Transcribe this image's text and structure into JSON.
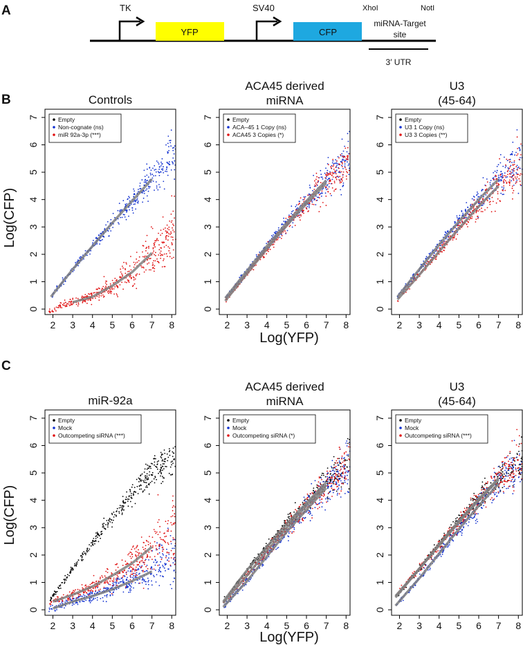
{
  "panel_labels": {
    "a": "A",
    "b": "B",
    "c": "C"
  },
  "construct": {
    "tk": "TK",
    "yfp": "YFP",
    "sv40": "SV40",
    "cfp": "CFP",
    "xhoi": "XhoI",
    "noti": "NotI",
    "target_line1": "miRNA-Target",
    "target_line2": "site",
    "utr": "3′ UTR",
    "colors": {
      "yfp": "#ffff00",
      "cfp": "#1ea8e0"
    }
  },
  "axis_labels": {
    "x": "Log(YFP)",
    "y": "Log(CFP)"
  },
  "series_colors": {
    "empty": "#000000",
    "blue": "#1030d0",
    "red": "#e01010",
    "fit": "#808080"
  },
  "chart_data": [
    {
      "type": "scatter",
      "title": [
        "Controls"
      ],
      "xlim": [
        1.6,
        8.2
      ],
      "ylim": [
        -0.2,
        7.3
      ],
      "xticks": [
        2,
        3,
        4,
        5,
        6,
        7,
        8
      ],
      "yticks": [
        0,
        1,
        2,
        3,
        4,
        5,
        6,
        7
      ],
      "legend": [
        "Empty",
        "Non-cognate (ns)",
        "miR 92a-3p (***)"
      ],
      "series": [
        {
          "name": "Non-cognate (ns)",
          "color": "blue",
          "x_range": [
            1.9,
            8.2
          ],
          "fit_x": [
            1.9,
            7.0
          ],
          "curve": [
            [
              1.9,
              0.45
            ],
            [
              3,
              1.45
            ],
            [
              4,
              2.3
            ],
            [
              5,
              3.15
            ],
            [
              6,
              3.95
            ],
            [
              7,
              4.75
            ],
            [
              8.2,
              5.7
            ]
          ],
          "noise": [
            0.05,
            0.45
          ],
          "count": 430
        },
        {
          "name": "miR 92a-3p (***)",
          "color": "red",
          "x_range": [
            1.8,
            8.2
          ],
          "fit_x": [
            3.0,
            7.0
          ],
          "curve": [
            [
              1.8,
              -0.1
            ],
            [
              2.5,
              0.15
            ],
            [
              3,
              0.25
            ],
            [
              4,
              0.45
            ],
            [
              5,
              0.85
            ],
            [
              6,
              1.35
            ],
            [
              7,
              2.05
            ],
            [
              8.2,
              2.9
            ]
          ],
          "noise": [
            0.07,
            0.6
          ],
          "count": 430
        }
      ]
    },
    {
      "type": "scatter",
      "title": [
        "ACA45 derived",
        "miRNA"
      ],
      "xlim": [
        1.6,
        8.2
      ],
      "ylim": [
        -0.2,
        7.3
      ],
      "xticks": [
        2,
        3,
        4,
        5,
        6,
        7,
        8
      ],
      "yticks": [
        0,
        1,
        2,
        3,
        4,
        5,
        6,
        7
      ],
      "legend": [
        "Empty",
        "ACA–45 1 Copy (ns)",
        "ACA45  3 Copies (*)"
      ],
      "series": [
        {
          "name": "ACA–45 1 Copy (ns)",
          "color": "blue",
          "x_range": [
            1.9,
            8.2
          ],
          "fit_x": [
            1.9,
            7.0
          ],
          "curve": [
            [
              1.9,
              0.4
            ],
            [
              3,
              1.4
            ],
            [
              4,
              2.3
            ],
            [
              5,
              3.15
            ],
            [
              6,
              3.95
            ],
            [
              7,
              4.7
            ],
            [
              8.2,
              5.5
            ]
          ],
          "noise": [
            0.05,
            0.45
          ],
          "count": 380
        },
        {
          "name": "ACA45  3 Copies (*)",
          "color": "red",
          "x_range": [
            1.9,
            8.2
          ],
          "fit_x": [
            1.9,
            7.0
          ],
          "curve": [
            [
              1.9,
              0.3
            ],
            [
              3,
              1.3
            ],
            [
              4,
              2.2
            ],
            [
              5,
              3.05
            ],
            [
              6,
              3.85
            ],
            [
              7,
              4.6
            ],
            [
              8.2,
              5.4
            ]
          ],
          "noise": [
            0.05,
            0.45
          ],
          "count": 380
        }
      ]
    },
    {
      "type": "scatter",
      "title": [
        "U3",
        "(45-64)"
      ],
      "xlim": [
        1.6,
        8.2
      ],
      "ylim": [
        -0.2,
        7.3
      ],
      "xticks": [
        2,
        3,
        4,
        5,
        6,
        7,
        8
      ],
      "yticks": [
        0,
        1,
        2,
        3,
        4,
        5,
        6,
        7
      ],
      "legend": [
        "Empty",
        "U3 1 Copy (ns)",
        "U3 3 Copies (**)"
      ],
      "series": [
        {
          "name": "U3 1 Copy (ns)",
          "color": "blue",
          "x_range": [
            1.9,
            8.2
          ],
          "fit_x": [
            1.9,
            7.0
          ],
          "curve": [
            [
              1.9,
              0.45
            ],
            [
              3,
              1.45
            ],
            [
              4,
              2.35
            ],
            [
              5,
              3.2
            ],
            [
              6,
              4.0
            ],
            [
              7,
              4.75
            ],
            [
              8.2,
              5.5
            ]
          ],
          "noise": [
            0.05,
            0.45
          ],
          "count": 380
        },
        {
          "name": "U3 3 Copies (**)",
          "color": "red",
          "x_range": [
            1.9,
            8.2
          ],
          "fit_x": [
            1.9,
            7.0
          ],
          "curve": [
            [
              1.9,
              0.35
            ],
            [
              3,
              1.25
            ],
            [
              4,
              2.1
            ],
            [
              5,
              2.95
            ],
            [
              6,
              3.75
            ],
            [
              7,
              4.5
            ],
            [
              8.2,
              5.3
            ]
          ],
          "noise": [
            0.05,
            0.45
          ],
          "count": 380
        }
      ]
    },
    {
      "type": "scatter",
      "title": [
        "miR-92a"
      ],
      "xlim": [
        1.6,
        8.2
      ],
      "ylim": [
        -0.2,
        7.3
      ],
      "xticks": [
        2,
        3,
        4,
        5,
        6,
        7,
        8
      ],
      "yticks": [
        0,
        1,
        2,
        3,
        4,
        5,
        6,
        7
      ],
      "legend": [
        "Empty",
        "Mock",
        "Outcompeting siRNA (***)"
      ],
      "series": [
        {
          "name": "Empty",
          "color": "empty",
          "x_range": [
            1.8,
            8.2
          ],
          "fit_x": null,
          "curve": [
            [
              1.8,
              0.3
            ],
            [
              3,
              1.5
            ],
            [
              4,
              2.45
            ],
            [
              5,
              3.35
            ],
            [
              6,
              4.2
            ],
            [
              7,
              5.0
            ],
            [
              8.2,
              5.7
            ]
          ],
          "noise": [
            0.05,
            0.4
          ],
          "count": 380
        },
        {
          "name": "Mock",
          "color": "blue",
          "x_range": [
            1.8,
            8.2
          ],
          "fit_x": [
            2.0,
            7.0
          ],
          "curve": [
            [
              1.8,
              0.0
            ],
            [
              3,
              0.3
            ],
            [
              4,
              0.5
            ],
            [
              5,
              0.75
            ],
            [
              6,
              1.05
            ],
            [
              7,
              1.4
            ],
            [
              8.2,
              1.9
            ]
          ],
          "noise": [
            0.06,
            0.5
          ],
          "count": 420
        },
        {
          "name": "Outcompeting siRNA (***)",
          "color": "red",
          "x_range": [
            1.8,
            8.2
          ],
          "fit_x": [
            2.0,
            7.0
          ],
          "curve": [
            [
              1.8,
              0.25
            ],
            [
              3,
              0.55
            ],
            [
              4,
              0.85
            ],
            [
              5,
              1.25
            ],
            [
              6,
              1.7
            ],
            [
              7,
              2.3
            ],
            [
              8.2,
              2.9
            ]
          ],
          "noise": [
            0.06,
            0.6
          ],
          "count": 420
        }
      ]
    },
    {
      "type": "scatter",
      "title": [
        "ACA45 derived",
        "miRNA"
      ],
      "xlim": [
        1.6,
        8.2
      ],
      "ylim": [
        -0.2,
        7.3
      ],
      "xticks": [
        2,
        3,
        4,
        5,
        6,
        7,
        8
      ],
      "yticks": [
        0,
        1,
        2,
        3,
        4,
        5,
        6,
        7
      ],
      "legend": [
        "Empty",
        "Mock",
        "Outcompeting siRNA (*)"
      ],
      "series": [
        {
          "name": "Empty",
          "color": "empty",
          "x_range": [
            1.8,
            8.2
          ],
          "fit_x": [
            1.8,
            7.0
          ],
          "curve": [
            [
              1.8,
              0.3
            ],
            [
              3,
              1.45
            ],
            [
              4,
              2.3
            ],
            [
              5,
              3.15
            ],
            [
              6,
              3.9
            ],
            [
              7,
              4.65
            ],
            [
              8.2,
              5.4
            ]
          ],
          "noise": [
            0.04,
            0.4
          ],
          "count": 360
        },
        {
          "name": "Mock",
          "color": "blue",
          "x_range": [
            1.8,
            8.2
          ],
          "fit_x": [
            1.8,
            7.0
          ],
          "curve": [
            [
              1.8,
              0.1
            ],
            [
              3,
              1.05
            ],
            [
              4,
              1.95
            ],
            [
              5,
              2.85
            ],
            [
              6,
              3.65
            ],
            [
              7,
              4.45
            ],
            [
              8.2,
              5.3
            ]
          ],
          "noise": [
            0.05,
            0.5
          ],
          "count": 380
        },
        {
          "name": "Outcompeting siRNA (*)",
          "color": "red",
          "x_range": [
            1.8,
            8.2
          ],
          "fit_x": [
            1.8,
            7.0
          ],
          "curve": [
            [
              1.8,
              0.25
            ],
            [
              3,
              1.25
            ],
            [
              4,
              2.15
            ],
            [
              5,
              3.0
            ],
            [
              6,
              3.8
            ],
            [
              7,
              4.55
            ],
            [
              8.2,
              5.4
            ]
          ],
          "noise": [
            0.05,
            0.5
          ],
          "count": 380
        }
      ]
    },
    {
      "type": "scatter",
      "title": [
        "U3",
        "(45-64)"
      ],
      "xlim": [
        1.6,
        8.2
      ],
      "ylim": [
        -0.2,
        7.3
      ],
      "xticks": [
        2,
        3,
        4,
        5,
        6,
        7,
        8
      ],
      "yticks": [
        0,
        1,
        2,
        3,
        4,
        5,
        6,
        7
      ],
      "legend": [
        "Empty",
        "Mock",
        "Outcompeting siRNA (***)"
      ],
      "series": [
        {
          "name": "Empty",
          "color": "empty",
          "x_range": [
            1.8,
            8.2
          ],
          "fit_x": [
            1.8,
            7.0
          ],
          "curve": [
            [
              1.8,
              0.45
            ],
            [
              3,
              1.5
            ],
            [
              4,
              2.4
            ],
            [
              5,
              3.25
            ],
            [
              6,
              4.05
            ],
            [
              7,
              4.8
            ],
            [
              8.2,
              5.5
            ]
          ],
          "noise": [
            0.04,
            0.4
          ],
          "count": 360
        },
        {
          "name": "Mock",
          "color": "blue",
          "x_range": [
            1.8,
            8.2
          ],
          "fit_x": [
            1.8,
            7.0
          ],
          "curve": [
            [
              1.8,
              0.15
            ],
            [
              3,
              1.15
            ],
            [
              4,
              2.05
            ],
            [
              5,
              2.95
            ],
            [
              6,
              3.8
            ],
            [
              7,
              4.6
            ],
            [
              8.2,
              5.3
            ]
          ],
          "noise": [
            0.05,
            0.5
          ],
          "count": 380
        },
        {
          "name": "Outcompeting siRNA (***)",
          "color": "red",
          "x_range": [
            1.8,
            8.2
          ],
          "fit_x": [
            1.8,
            7.0
          ],
          "curve": [
            [
              1.8,
              0.5
            ],
            [
              3,
              1.5
            ],
            [
              4,
              2.35
            ],
            [
              5,
              3.2
            ],
            [
              6,
              4.0
            ],
            [
              7,
              4.75
            ],
            [
              8.2,
              5.45
            ]
          ],
          "noise": [
            0.05,
            0.45
          ],
          "count": 380
        }
      ]
    }
  ]
}
